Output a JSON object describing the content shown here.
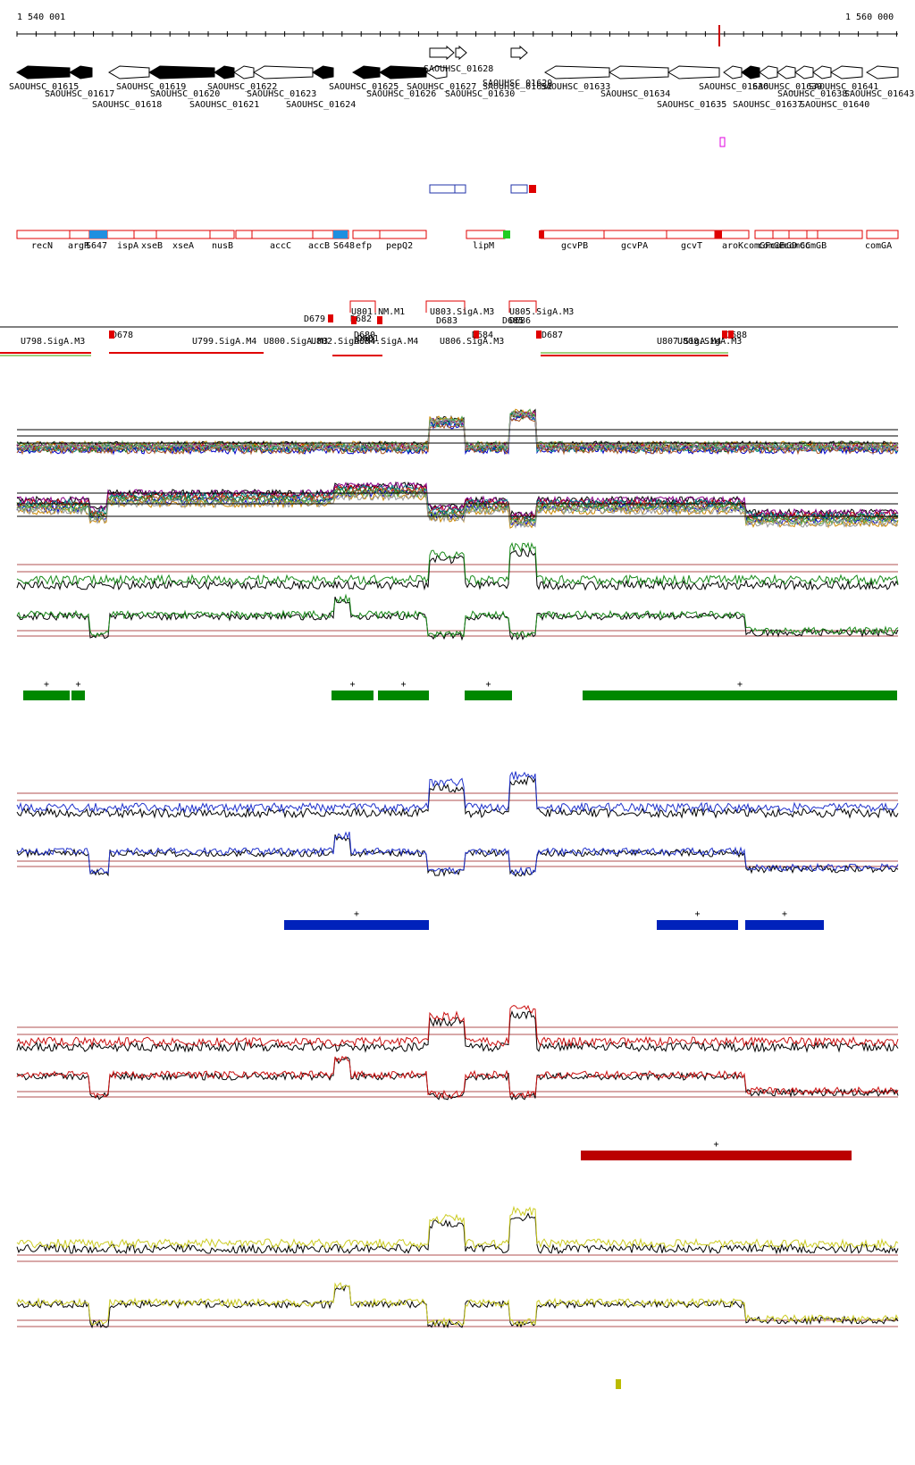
{
  "coordinates": {
    "start_label": "1 540 001",
    "end_label": "1 560 000"
  },
  "genes_strand_top": [
    {
      "label": "SAOUHSC_01628",
      "strand": "+"
    },
    {
      "label": "SAOUHSC_01629",
      "strand": "+"
    }
  ],
  "genes_main": [
    {
      "label": "SAOUHSC_01615",
      "fill": "black"
    },
    {
      "label": "SAOUHSC_01617",
      "fill": "black"
    },
    {
      "label": "SAOUHSC_01618",
      "fill": "white"
    },
    {
      "label": "SAOUHSC_01619",
      "fill": "black"
    },
    {
      "label": "SAOUHSC_01620",
      "fill": "black"
    },
    {
      "label": "SAOUHSC_01621",
      "fill": "white"
    },
    {
      "label": "SAOUHSC_01622",
      "fill": "white"
    },
    {
      "label": "SAOUHSC_01623",
      "fill": "black"
    },
    {
      "label": "SAOUHSC_01624",
      "fill": "black"
    },
    {
      "label": "SAOUHSC_01625",
      "fill": "black"
    },
    {
      "label": "SAOUHSC_01626",
      "fill": "white"
    },
    {
      "label": "SAOUHSC_01627",
      "fill": "white"
    },
    {
      "label": "SAOUHSC_01630",
      "fill": "white"
    },
    {
      "label": "SAOUHSC_01632",
      "fill": "white"
    },
    {
      "label": "SAOUHSC_01633",
      "fill": "white"
    },
    {
      "label": "SAOUHSC_01634",
      "fill": "black"
    },
    {
      "label": "SAOUHSC_01635",
      "fill": "white"
    },
    {
      "label": "SAOUHSC_01636",
      "fill": "white"
    },
    {
      "label": "SAOUHSC_01637",
      "fill": "white"
    },
    {
      "label": "SAOUHSC_01638",
      "fill": "white"
    },
    {
      "label": "SAOUHSC_01639",
      "fill": "white"
    },
    {
      "label": "SAOUHSC_01640",
      "fill": "white"
    },
    {
      "label": "SAOUHSC_01641",
      "fill": "white"
    },
    {
      "label": "SAOUHSC_01643",
      "fill": "white"
    }
  ],
  "gene_names": [
    "recN",
    "argR",
    "S647",
    "ispA",
    "xseB",
    "xseA",
    "nusB",
    "accC",
    "accB",
    "S648",
    "efp",
    "pepQ2",
    "lipM",
    "gcvPB",
    "gcvPA",
    "gcvT",
    "aroK",
    "comGF",
    "comGE",
    "comGD",
    "comGC",
    "comGB",
    "comGA"
  ],
  "features": {
    "top_row": [
      "U801.NM.M1",
      "U803.SigA.M3",
      "U805.SigA.M3"
    ],
    "d_labels": [
      "D678",
      "D679",
      "D680",
      "D681",
      "D682",
      "D683",
      "D684",
      "D685",
      "D686",
      "D687",
      "D688"
    ],
    "bottom_row": [
      "U798.SigA.M3",
      "U799.SigA.M4",
      "U800.SigA.M3",
      "U802.SigA.M4",
      "U804.SigA.M4",
      "U806.SigA.M3",
      "U807.SigA.M4",
      "U808.SigA.M3"
    ]
  },
  "tracks": [
    {
      "name": "multi",
      "color": "#555555"
    },
    {
      "name": "green",
      "color": "#1a8a1a",
      "bar": "#008800"
    },
    {
      "name": "blue",
      "color": "#2233cc",
      "bar": "#0022bb"
    },
    {
      "name": "red",
      "color": "#cc1111",
      "bar": "#bb0000"
    },
    {
      "name": "yellow",
      "color": "#cccc22",
      "bar": "#bbbb00"
    }
  ],
  "segment_marks": [
    "+"
  ]
}
